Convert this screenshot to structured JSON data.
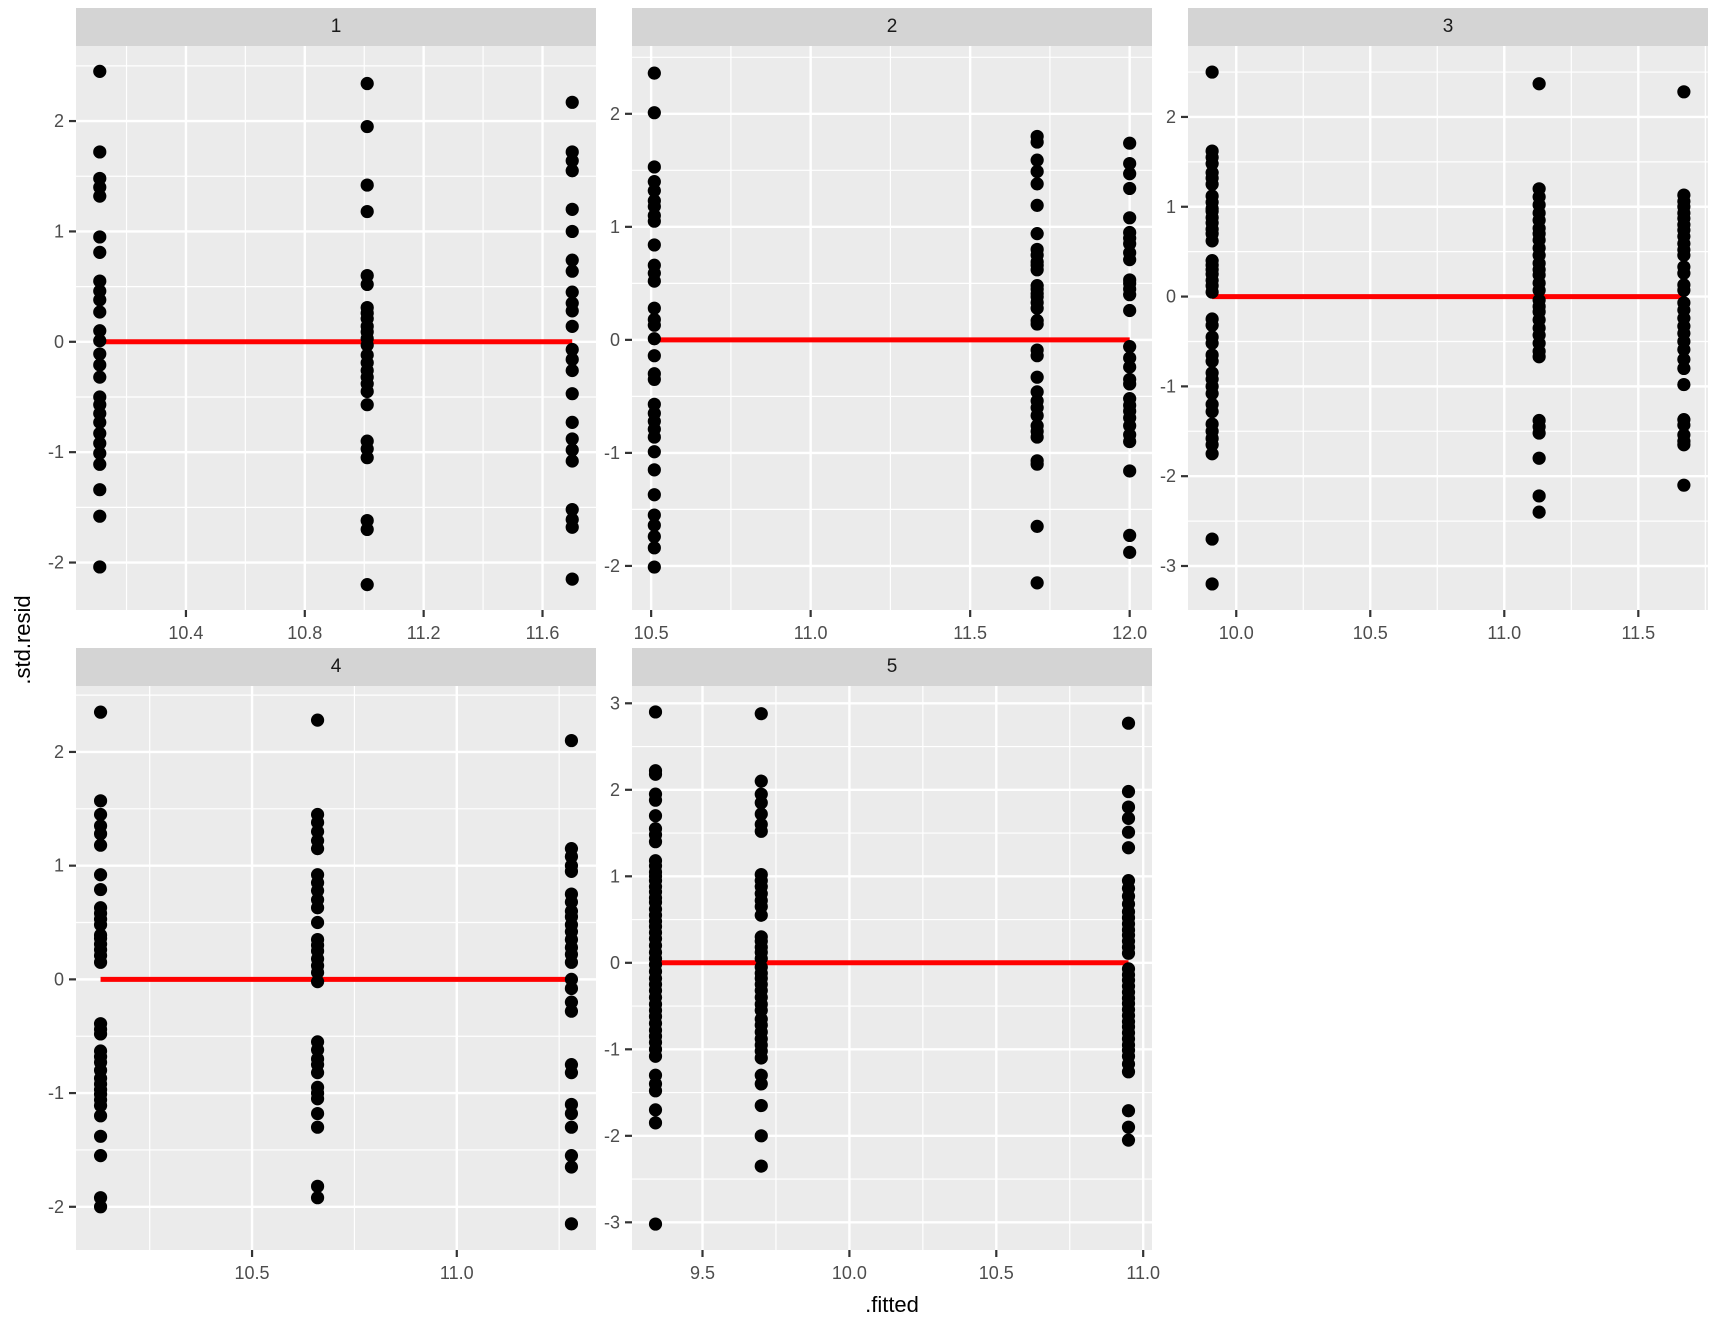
{
  "figure": {
    "y_axis_title": ".std.resid",
    "x_axis_title": ".fitted",
    "colors": {
      "background": "#FFFFFF",
      "panel_background": "#EBEBEB",
      "strip_background": "#D4D4D4",
      "grid": "#FFFFFF",
      "points": "#000000",
      "reference_line": "#FF0000",
      "axis_text": "#4D4D4D",
      "tick_mark": "#333333",
      "strip_text": "#1A1A1A"
    }
  },
  "chart_data": [
    {
      "type": "scatter",
      "facet_label": "1",
      "xlabel": ".fitted",
      "ylabel": ".std.resid",
      "xlim": [
        10.03,
        11.78
      ],
      "ylim": [
        -2.43,
        2.68
      ],
      "x_ticks": [
        10.4,
        10.8,
        11.2,
        11.6
      ],
      "x_tick_labels": [
        "10.4",
        "10.8",
        "11.2",
        "11.6"
      ],
      "x_minor_step": 0.2,
      "y_ticks": [
        -2,
        -1,
        0,
        1,
        2
      ],
      "y_tick_labels": [
        "-2",
        "-1",
        "0",
        "1",
        "2"
      ],
      "y_minor_step": 0.5,
      "reference_line_y": 0,
      "legend": "none",
      "grid": true,
      "series": [
        {
          "x": 10.11,
          "y": [
            2.45,
            1.72,
            1.48,
            1.4,
            1.32,
            0.95,
            0.81,
            0.55,
            0.46,
            0.38,
            0.27,
            0.1,
            0.01,
            -0.11,
            -0.21,
            -0.32,
            -0.5,
            -0.57,
            -0.65,
            -0.73,
            -0.83,
            -0.92,
            -1.01,
            -1.11,
            -1.34,
            -1.58,
            -2.04
          ]
        },
        {
          "x": 11.01,
          "y": [
            2.34,
            1.95,
            1.42,
            1.18,
            0.6,
            0.52,
            0.31,
            0.26,
            0.21,
            0.14,
            0.09,
            0.03,
            -0.03,
            -0.12,
            -0.19,
            -0.26,
            -0.32,
            -0.38,
            -0.45,
            -0.57,
            -0.9,
            -0.97,
            -1.05,
            -1.62,
            -1.7,
            -2.2
          ]
        },
        {
          "x": 11.7,
          "y": [
            2.17,
            1.72,
            1.64,
            1.55,
            1.2,
            1.0,
            0.74,
            0.64,
            0.45,
            0.35,
            0.28,
            0.14,
            -0.07,
            -0.16,
            -0.26,
            -0.47,
            -0.73,
            -0.88,
            -0.98,
            -1.08,
            -1.52,
            -1.61,
            -1.68,
            -2.15
          ]
        }
      ]
    },
    {
      "type": "scatter",
      "facet_label": "2",
      "xlabel": ".fitted",
      "ylabel": ".std.resid",
      "xlim": [
        10.44,
        12.07
      ],
      "ylim": [
        -2.39,
        2.6
      ],
      "x_ticks": [
        10.5,
        11.0,
        11.5,
        12.0
      ],
      "x_tick_labels": [
        "10.5",
        "11.0",
        "11.5",
        "12.0"
      ],
      "x_minor_step": 0.25,
      "y_ticks": [
        -2,
        -1,
        0,
        1,
        2
      ],
      "y_tick_labels": [
        "-2",
        "-1",
        "0",
        "1",
        "2"
      ],
      "y_minor_step": 0.5,
      "reference_line_y": 0,
      "legend": "none",
      "grid": true,
      "series": [
        {
          "x": 10.51,
          "y": [
            2.36,
            2.01,
            1.53,
            1.4,
            1.32,
            1.23,
            1.18,
            1.1,
            1.05,
            0.84,
            0.66,
            0.59,
            0.52,
            0.28,
            0.18,
            0.13,
            0.01,
            -0.14,
            -0.3,
            -0.35,
            -0.57,
            -0.65,
            -0.72,
            -0.79,
            -0.86,
            -0.99,
            -1.15,
            -1.37,
            -1.55,
            -1.64,
            -1.74,
            -1.84,
            -2.01
          ]
        },
        {
          "x": 11.71,
          "y": [
            1.8,
            1.75,
            1.59,
            1.49,
            1.38,
            1.19,
            0.94,
            0.8,
            0.75,
            0.69,
            0.66,
            0.62,
            0.48,
            0.45,
            0.41,
            0.38,
            0.33,
            0.28,
            0.17,
            0.14,
            -0.09,
            -0.14,
            -0.33,
            -0.46,
            -0.54,
            -0.6,
            -0.67,
            -0.76,
            -0.81,
            -0.86,
            -1.07,
            -1.1,
            -1.65,
            -2.15
          ]
        },
        {
          "x": 12.0,
          "y": [
            1.74,
            1.56,
            1.47,
            1.34,
            1.08,
            0.95,
            0.9,
            0.85,
            0.77,
            0.71,
            0.53,
            0.5,
            0.45,
            0.4,
            0.26,
            -0.06,
            -0.16,
            -0.24,
            -0.35,
            -0.39,
            -0.52,
            -0.58,
            -0.63,
            -0.69,
            -0.76,
            -0.84,
            -0.9,
            -1.16,
            -1.73,
            -1.88
          ]
        }
      ]
    },
    {
      "type": "scatter",
      "facet_label": "3",
      "xlabel": ".fitted",
      "ylabel": ".std.resid",
      "xlim": [
        9.82,
        11.76
      ],
      "ylim": [
        -3.49,
        2.79
      ],
      "x_ticks": [
        10.0,
        10.5,
        11.0,
        11.5
      ],
      "x_tick_labels": [
        "10.0",
        "10.5",
        "11.0",
        "11.5"
      ],
      "x_minor_step": 0.25,
      "y_ticks": [
        -3,
        -2,
        -1,
        0,
        1,
        2
      ],
      "y_tick_labels": [
        "-3",
        "-2",
        "-1",
        "0",
        "1",
        "2"
      ],
      "y_minor_step": 0.5,
      "reference_line_y": 0,
      "legend": "none",
      "grid": true,
      "series": [
        {
          "x": 9.91,
          "y": [
            2.5,
            1.62,
            1.55,
            1.48,
            1.38,
            1.32,
            1.25,
            1.12,
            1.05,
            0.98,
            0.95,
            0.88,
            0.82,
            0.75,
            0.7,
            0.62,
            0.4,
            0.35,
            0.3,
            0.25,
            0.18,
            0.12,
            0.05,
            -0.25,
            -0.32,
            -0.45,
            -0.52,
            -0.65,
            -0.72,
            -0.85,
            -0.92,
            -1.0,
            -1.08,
            -1.2,
            -1.28,
            -1.42,
            -1.5,
            -1.58,
            -1.65,
            -1.75,
            -2.7,
            -3.2
          ]
        },
        {
          "x": 11.13,
          "y": [
            2.37,
            1.2,
            1.11,
            1.02,
            0.93,
            0.85,
            0.76,
            0.7,
            0.63,
            0.54,
            0.46,
            0.37,
            0.3,
            0.24,
            0.15,
            0.07,
            -0.04,
            -0.11,
            -0.17,
            -0.26,
            -0.35,
            -0.43,
            -0.52,
            -0.61,
            -0.67,
            -1.38,
            -1.45,
            -1.52,
            -1.8,
            -2.22,
            -2.4
          ]
        },
        {
          "x": 11.67,
          "y": [
            2.28,
            1.13,
            1.06,
            1.0,
            0.93,
            0.87,
            0.8,
            0.74,
            0.67,
            0.59,
            0.52,
            0.46,
            0.33,
            0.26,
            0.13,
            0.07,
            -0.07,
            -0.15,
            -0.24,
            -0.33,
            -0.41,
            -0.5,
            -0.59,
            -0.7,
            -0.8,
            -0.98,
            -1.37,
            -1.43,
            -1.54,
            -1.61,
            -1.65,
            -2.1
          ]
        }
      ]
    },
    {
      "type": "scatter",
      "facet_label": "4",
      "xlabel": ".fitted",
      "ylabel": ".std.resid",
      "xlim": [
        10.07,
        11.34
      ],
      "ylim": [
        -2.38,
        2.58
      ],
      "x_ticks": [
        10.5,
        11.0
      ],
      "x_tick_labels": [
        "10.5",
        "11.0"
      ],
      "x_minor_step": 0.25,
      "y_ticks": [
        -2,
        -1,
        0,
        1,
        2
      ],
      "y_tick_labels": [
        "-2",
        "-1",
        "0",
        "1",
        "2"
      ],
      "y_minor_step": 0.5,
      "reference_line_y": 0,
      "legend": "none",
      "grid": true,
      "series": [
        {
          "x": 10.13,
          "y": [
            2.35,
            1.57,
            1.45,
            1.35,
            1.28,
            1.18,
            0.92,
            0.79,
            0.63,
            0.58,
            0.53,
            0.48,
            0.39,
            0.36,
            0.31,
            0.26,
            0.21,
            0.15,
            -0.39,
            -0.44,
            -0.48,
            -0.63,
            -0.68,
            -0.73,
            -0.8,
            -0.87,
            -0.92,
            -0.97,
            -1.01,
            -1.06,
            -1.11,
            -1.2,
            -1.38,
            -1.55,
            -1.92,
            -2.0
          ]
        },
        {
          "x": 10.66,
          "y": [
            2.28,
            1.45,
            1.38,
            1.3,
            1.22,
            1.15,
            0.92,
            0.85,
            0.78,
            0.7,
            0.63,
            0.5,
            0.35,
            0.3,
            0.25,
            0.18,
            0.12,
            0.06,
            -0.02,
            -0.55,
            -0.62,
            -0.7,
            -0.75,
            -0.82,
            -0.95,
            -1.0,
            -1.05,
            -1.18,
            -1.3,
            -1.82,
            -1.92
          ]
        },
        {
          "x": 11.28,
          "y": [
            2.1,
            1.15,
            1.08,
            1.0,
            0.95,
            0.75,
            0.68,
            0.6,
            0.55,
            0.48,
            0.42,
            0.35,
            0.28,
            0.22,
            0.15,
            0.0,
            -0.08,
            -0.2,
            -0.28,
            -0.75,
            -0.82,
            -1.1,
            -1.18,
            -1.3,
            -1.55,
            -1.65,
            -2.15
          ]
        }
      ]
    },
    {
      "type": "scatter",
      "facet_label": "5",
      "xlabel": ".fitted",
      "ylabel": ".std.resid",
      "xlim": [
        9.26,
        11.03
      ],
      "ylim": [
        -3.32,
        3.2
      ],
      "x_ticks": [
        9.5,
        10.0,
        10.5,
        11.0
      ],
      "x_tick_labels": [
        "9.5",
        "10.0",
        "10.5",
        "11.0"
      ],
      "x_minor_step": 0.25,
      "y_ticks": [
        -3,
        -2,
        -1,
        0,
        1,
        2,
        3
      ],
      "y_tick_labels": [
        "-3",
        "-2",
        "-1",
        "0",
        "1",
        "2",
        "3"
      ],
      "y_minor_step": 0.5,
      "reference_line_y": 0,
      "legend": "none",
      "grid": true,
      "series": [
        {
          "x": 9.34,
          "y": [
            2.9,
            2.22,
            2.18,
            1.95,
            1.88,
            1.7,
            1.55,
            1.48,
            1.4,
            1.18,
            1.12,
            1.05,
            1.0,
            0.95,
            0.88,
            0.82,
            0.75,
            0.7,
            0.62,
            0.55,
            0.48,
            0.42,
            0.35,
            0.28,
            0.2,
            0.12,
            0.05,
            -0.02,
            -0.1,
            -0.18,
            -0.25,
            -0.32,
            -0.4,
            -0.48,
            -0.55,
            -0.62,
            -0.7,
            -0.78,
            -0.85,
            -0.92,
            -1.0,
            -1.08,
            -1.3,
            -1.4,
            -1.48,
            -1.7,
            -1.85,
            -3.02
          ]
        },
        {
          "x": 9.7,
          "y": [
            2.88,
            2.1,
            1.95,
            1.85,
            1.72,
            1.6,
            1.52,
            1.02,
            0.95,
            0.88,
            0.8,
            0.72,
            0.65,
            0.55,
            0.3,
            0.25,
            0.18,
            0.12,
            0.05,
            -0.05,
            -0.12,
            -0.18,
            -0.25,
            -0.32,
            -0.4,
            -0.48,
            -0.55,
            -0.65,
            -0.72,
            -0.8,
            -0.88,
            -0.95,
            -1.02,
            -1.1,
            -1.3,
            -1.4,
            -1.65,
            -2.0,
            -2.35
          ]
        },
        {
          "x": 10.95,
          "y": [
            2.77,
            1.98,
            1.8,
            1.67,
            1.51,
            1.33,
            0.95,
            0.86,
            0.77,
            0.68,
            0.59,
            0.52,
            0.45,
            0.38,
            0.32,
            0.25,
            0.18,
            0.11,
            -0.07,
            -0.14,
            -0.2,
            -0.27,
            -0.34,
            -0.41,
            -0.47,
            -0.54,
            -0.61,
            -0.68,
            -0.74,
            -0.81,
            -0.88,
            -0.95,
            -1.01,
            -1.08,
            -1.17,
            -1.26,
            -1.71,
            -1.9,
            -2.05
          ]
        }
      ]
    }
  ]
}
